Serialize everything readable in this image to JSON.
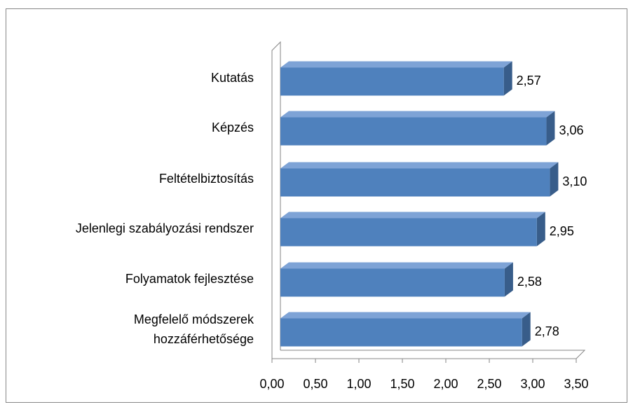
{
  "chart_data": {
    "type": "bar3d_horizontal",
    "categories": [
      "Kutatás",
      "Képzés",
      "Feltételbiztosítás",
      "Jelenlegi szabályozási rendszer",
      "Folyamatok fejlesztése",
      "Megfelelő módszerek hozzáférhetősége"
    ],
    "values": [
      2.57,
      3.06,
      3.1,
      2.95,
      2.58,
      2.78
    ],
    "value_labels": [
      "2,57",
      "3,06",
      "3,10",
      "2,95",
      "2,58",
      "2,78"
    ],
    "color": "#4f81bd",
    "xlim": [
      0,
      3.5
    ],
    "xticks": [
      {
        "value": 0,
        "label": "0,00"
      },
      {
        "value": 0.5,
        "label": "0,50"
      },
      {
        "value": 1,
        "label": "1,00"
      },
      {
        "value": 1.5,
        "label": "1,50"
      },
      {
        "value": 2,
        "label": "2,00"
      },
      {
        "value": 2.5,
        "label": "2,50"
      },
      {
        "value": 3,
        "label": "3,00"
      },
      {
        "value": 3.5,
        "label": "3,50"
      }
    ]
  }
}
